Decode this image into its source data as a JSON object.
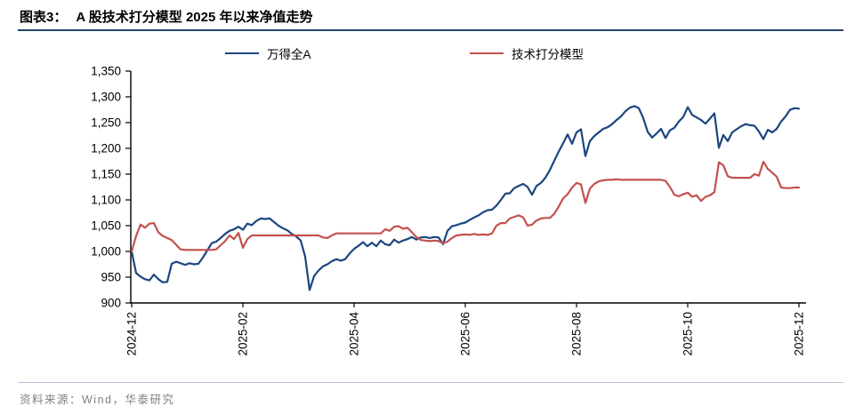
{
  "header": {
    "title_prefix": "图表3：",
    "title": "A 股技术打分模型 2025 年以来净值走势"
  },
  "footer": {
    "source": "资料来源：Wind，华泰研究"
  },
  "legend": [
    {
      "label": "万得全A",
      "color": "#1b4680"
    },
    {
      "label": "技术打分模型",
      "color": "#c4514f"
    }
  ],
  "chart_data": {
    "type": "line",
    "title": "A 股技术打分模型 2025 年以来净值走势",
    "xlabel": "",
    "ylabel": "",
    "grid": false,
    "legend_position": "top",
    "ylim": [
      900,
      1350
    ],
    "yticks": [
      {
        "value": 1350,
        "label": "1,350"
      },
      {
        "value": 1300,
        "label": "1,300"
      },
      {
        "value": 1250,
        "label": "1,250"
      },
      {
        "value": 1200,
        "label": "1,200"
      },
      {
        "value": 1150,
        "label": "1,150"
      },
      {
        "value": 1100,
        "label": "1,100"
      },
      {
        "value": 1050,
        "label": "1,050"
      },
      {
        "value": 1000,
        "label": "1,000"
      },
      {
        "value": 950,
        "label": "950"
      },
      {
        "value": 900,
        "label": "900"
      }
    ],
    "x_range": [
      "2024-12",
      "2025-12"
    ],
    "xticks": [
      {
        "index": 0,
        "label": "2024-12"
      },
      {
        "index": 25,
        "label": "2025-02"
      },
      {
        "index": 50,
        "label": "2025-04"
      },
      {
        "index": 75,
        "label": "2025-06"
      },
      {
        "index": 100,
        "label": "2025-08"
      },
      {
        "index": 125,
        "label": "2025-10"
      },
      {
        "index": 150,
        "label": "2025-12"
      }
    ],
    "series": [
      {
        "name": "万得全A",
        "color": "#1b4680",
        "values": [
          1000,
          958,
          951,
          946,
          944,
          955,
          946,
          940,
          941,
          976,
          980,
          977,
          974,
          977,
          975,
          976,
          988,
          1002,
          1016,
          1019,
          1026,
          1034,
          1040,
          1043,
          1048,
          1042,
          1054,
          1051,
          1059,
          1064,
          1063,
          1064,
          1057,
          1050,
          1045,
          1041,
          1034,
          1029,
          1021,
          990,
          925,
          952,
          963,
          971,
          975,
          981,
          985,
          982,
          985,
          996,
          1005,
          1011,
          1018,
          1010,
          1017,
          1010,
          1021,
          1014,
          1012,
          1023,
          1017,
          1021,
          1024,
          1028,
          1023,
          1027,
          1028,
          1026,
          1028,
          1027,
          1014,
          1040,
          1049,
          1051,
          1054,
          1056,
          1061,
          1066,
          1070,
          1076,
          1080,
          1081,
          1089,
          1100,
          1112,
          1113,
          1123,
          1127,
          1131,
          1125,
          1110,
          1127,
          1133,
          1143,
          1158,
          1176,
          1194,
          1210,
          1227,
          1209,
          1231,
          1237,
          1185,
          1214,
          1224,
          1231,
          1238,
          1241,
          1247,
          1255,
          1262,
          1272,
          1279,
          1282,
          1278,
          1259,
          1232,
          1221,
          1229,
          1238,
          1220,
          1235,
          1240,
          1252,
          1261,
          1280,
          1265,
          1260,
          1255,
          1248,
          1258,
          1268,
          1201,
          1226,
          1214,
          1231,
          1237,
          1243,
          1247,
          1245,
          1244,
          1233,
          1218,
          1236,
          1231,
          1238,
          1252,
          1262,
          1275,
          1278,
          1277
        ]
      },
      {
        "name": "技术打分模型",
        "color": "#c4514f",
        "values": [
          1000,
          1030,
          1052,
          1046,
          1054,
          1055,
          1037,
          1030,
          1026,
          1022,
          1013,
          1004,
          1003,
          1003,
          1003,
          1003,
          1003,
          1003,
          1003,
          1004,
          1012,
          1020,
          1031,
          1024,
          1036,
          1007,
          1024,
          1031,
          1031,
          1031,
          1031,
          1031,
          1031,
          1031,
          1031,
          1031,
          1031,
          1031,
          1031,
          1031,
          1031,
          1031,
          1031,
          1027,
          1026,
          1031,
          1035,
          1035,
          1035,
          1035,
          1035,
          1035,
          1035,
          1035,
          1035,
          1035,
          1035,
          1043,
          1040,
          1048,
          1049,
          1044,
          1046,
          1037,
          1028,
          1022,
          1021,
          1020,
          1021,
          1020,
          1016,
          1019,
          1026,
          1031,
          1032,
          1033,
          1032,
          1034,
          1032,
          1033,
          1032,
          1035,
          1050,
          1055,
          1055,
          1064,
          1067,
          1070,
          1066,
          1050,
          1052,
          1060,
          1064,
          1065,
          1065,
          1073,
          1087,
          1103,
          1111,
          1124,
          1133,
          1130,
          1094,
          1122,
          1131,
          1136,
          1138,
          1139,
          1139,
          1140,
          1139,
          1139,
          1139,
          1139,
          1139,
          1139,
          1139,
          1139,
          1139,
          1139,
          1137,
          1125,
          1110,
          1107,
          1111,
          1114,
          1106,
          1109,
          1098,
          1106,
          1109,
          1115,
          1173,
          1167,
          1146,
          1143,
          1143,
          1143,
          1143,
          1143,
          1150,
          1147,
          1174,
          1160,
          1153,
          1145,
          1124,
          1123,
          1123,
          1124,
          1124
        ]
      }
    ]
  }
}
